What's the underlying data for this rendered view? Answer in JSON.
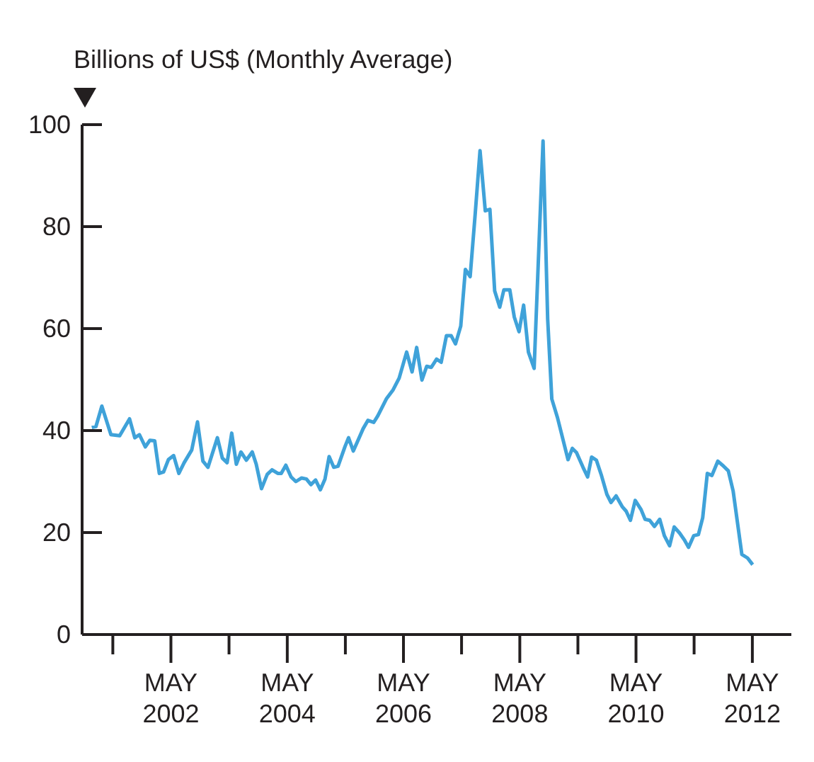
{
  "chart_data": {
    "type": "line",
    "ylabel": "Billions of US$ (Monthly Average)",
    "x": [
      "2000-12-20",
      "2001-01-15",
      "2001-02-21",
      "2001-04-19",
      "2001-06-13",
      "2001-08-14",
      "2001-09-16",
      "2001-10-15",
      "2001-11-21",
      "2001-12-20",
      "2002-01-19",
      "2002-02-17",
      "2002-03-16",
      "2002-04-15",
      "2002-05-18",
      "2002-06-20",
      "2002-07-23",
      "2002-09-09",
      "2002-10-15",
      "2002-11-18",
      "2002-12-20",
      "2003-02-17",
      "2003-03-20",
      "2003-04-19",
      "2003-05-18",
      "2003-06-16",
      "2003-07-15",
      "2003-08-18",
      "2003-09-24",
      "2003-10-19",
      "2003-11-21",
      "2003-12-27",
      "2004-01-26",
      "2004-03-02",
      "2004-03-24",
      "2004-04-22",
      "2004-05-25",
      "2004-06-24",
      "2004-07-30",
      "2004-08-29",
      "2004-09-27",
      "2004-10-26",
      "2004-11-25",
      "2004-12-24",
      "2005-01-19",
      "2005-02-17",
      "2005-03-16",
      "2005-04-29",
      "2005-05-21",
      "2005-06-20",
      "2005-08-21",
      "2005-09-20",
      "2005-10-26",
      "2005-11-21",
      "2006-01-15",
      "2006-02-25",
      "2006-04-04",
      "2006-05-21",
      "2006-06-24",
      "2006-07-23",
      "2006-08-25",
      "2006-09-24",
      "2006-10-23",
      "2006-11-25",
      "2006-12-24",
      "2007-01-26",
      "2007-02-25",
      "2007-03-24",
      "2007-04-26",
      "2007-05-25",
      "2007-06-24",
      "2007-07-26",
      "2007-08-25",
      "2007-09-27",
      "2007-10-26",
      "2007-11-25",
      "2007-12-27",
      "2008-01-22",
      "2008-02-28",
      "2008-03-27",
      "2008-04-26",
      "2008-05-25",
      "2008-06-24",
      "2008-07-30",
      "2008-09-24",
      "2008-10-23",
      "2008-11-18",
      "2008-12-24",
      "2009-02-28",
      "2009-03-27",
      "2009-04-22",
      "2009-06-02",
      "2009-07-01",
      "2009-07-26",
      "2009-08-25",
      "2009-09-24",
      "2009-10-30",
      "2009-11-25",
      "2009-12-27",
      "2010-02-03",
      "2010-02-28",
      "2010-03-27",
      "2010-04-26",
      "2010-06-02",
      "2010-06-27",
      "2010-07-26",
      "2010-08-25",
      "2010-09-27",
      "2010-10-26",
      "2010-11-28",
      "2010-12-27",
      "2011-01-30",
      "2011-02-28",
      "2011-03-27",
      "2011-04-29",
      "2011-05-28",
      "2011-06-24",
      "2011-07-23",
      "2011-08-21",
      "2011-09-27",
      "2011-11-03",
      "2011-12-02",
      "2012-01-01",
      "2012-02-25",
      "2012-04-01",
      "2012-05-03"
    ],
    "series": [
      {
        "color": "#3fa2d9",
        "values": [
          40.6,
          40.8,
          44.8,
          39.2,
          39.0,
          42.3,
          38.6,
          39.2,
          36.8,
          38.1,
          38.0,
          31.6,
          31.9,
          34.3,
          35.1,
          31.6,
          33.7,
          36.2,
          41.7,
          34.0,
          32.8,
          38.6,
          34.6,
          33.7,
          39.5,
          33.4,
          35.8,
          34.2,
          35.8,
          33.4,
          28.6,
          31.4,
          32.3,
          31.6,
          31.6,
          33.2,
          30.9,
          30.0,
          30.7,
          30.5,
          29.4,
          30.3,
          28.4,
          30.5,
          34.9,
          32.8,
          33.0,
          36.9,
          38.6,
          36.0,
          40.4,
          42.0,
          41.6,
          42.9,
          46.3,
          48.0,
          50.3,
          55.4,
          51.5,
          56.3,
          49.9,
          52.6,
          52.4,
          54.0,
          53.4,
          58.6,
          58.6,
          57.0,
          60.5,
          71.6,
          70.2,
          82.6,
          94.9,
          83.1,
          83.4,
          67.4,
          64.2,
          67.6,
          67.6,
          62.3,
          59.4,
          64.6,
          55.4,
          52.2,
          96.8,
          61.9,
          46.2,
          42.5,
          34.3,
          36.5,
          35.7,
          32.8,
          30.9,
          34.8,
          34.2,
          31.4,
          27.5,
          25.9,
          27.2,
          25.1,
          24.2,
          22.4,
          26.3,
          24.5,
          22.6,
          22.4,
          21.2,
          22.6,
          19.4,
          17.4,
          21.1,
          19.9,
          18.6,
          17.1,
          19.4,
          19.6,
          22.9,
          31.6,
          31.2,
          34.0,
          33.0,
          32.1,
          28.2,
          15.7,
          15.0,
          13.7
        ]
      }
    ],
    "xlim": [
      "2000-10-20",
      "2013-01-01"
    ],
    "xticks": [
      {
        "value": "2001-05",
        "label": null
      },
      {
        "value": "2002-05",
        "label": "MAY 2002"
      },
      {
        "value": "2003-05",
        "label": null
      },
      {
        "value": "2004-05",
        "label": "MAY 2004"
      },
      {
        "value": "2005-05",
        "label": null
      },
      {
        "value": "2006-05",
        "label": "MAY 2006"
      },
      {
        "value": "2007-05",
        "label": null
      },
      {
        "value": "2008-05",
        "label": "MAY 2008"
      },
      {
        "value": "2009-05",
        "label": null
      },
      {
        "value": "2010-05",
        "label": "MAY 2010"
      },
      {
        "value": "2011-05",
        "label": null
      },
      {
        "value": "2012-05",
        "label": "MAY 2012"
      }
    ],
    "ylim": [
      0,
      100
    ],
    "yticks": [
      0,
      20,
      40,
      60,
      80,
      100
    ],
    "marker": "none",
    "line_style": "solid"
  }
}
